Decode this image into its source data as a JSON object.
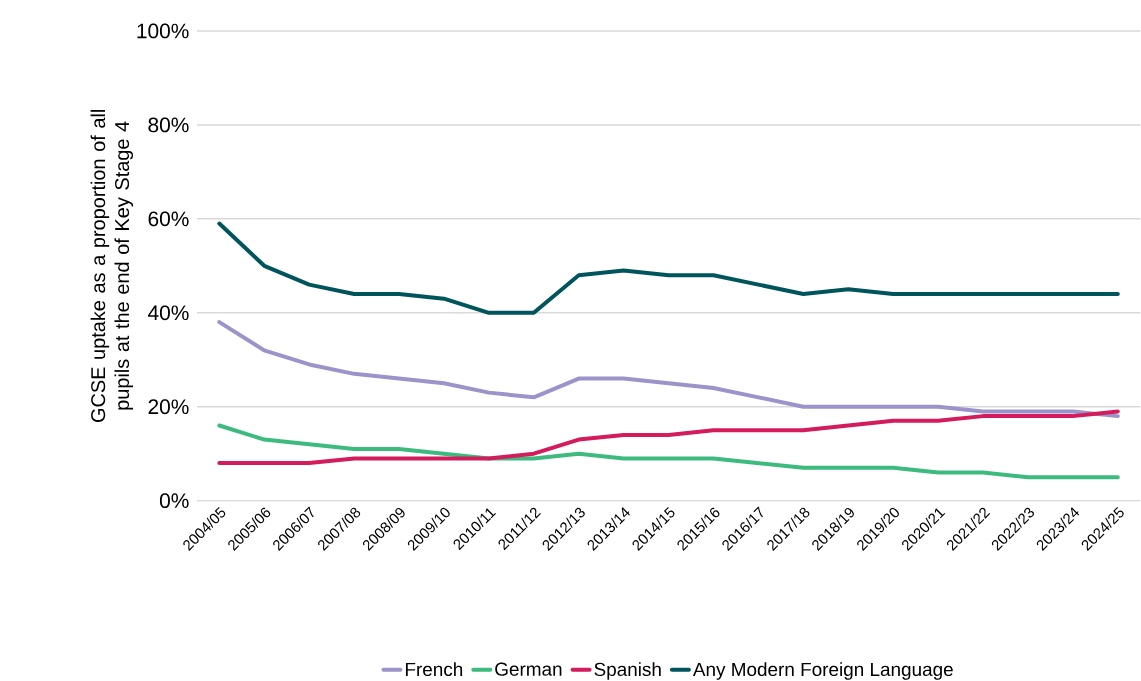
{
  "chart_data": {
    "type": "line",
    "ylabel": "GCSE uptake as a proportion of all pupils at the end of Key Stage 4",
    "categories": [
      "2004/05",
      "2005/06",
      "2006/07",
      "2007/08",
      "2008/09",
      "2009/10",
      "2010/11",
      "2011/12",
      "2012/13",
      "2013/14",
      "2014/15",
      "2015/16",
      "2016/17",
      "2017/18",
      "2018/19",
      "2019/20",
      "2020/21",
      "2021/22",
      "2022/23",
      "2023/24",
      "2024/25"
    ],
    "series": [
      {
        "name": "French",
        "color": "#9b93c9",
        "values": [
          38,
          32,
          29,
          27,
          26,
          25,
          23,
          22,
          26,
          26,
          25,
          24,
          22,
          20,
          20,
          20,
          20,
          19,
          19,
          19,
          18
        ]
      },
      {
        "name": "German",
        "color": "#3dbb7f",
        "values": [
          16,
          13,
          12,
          11,
          11,
          10,
          9,
          9,
          10,
          9,
          9,
          9,
          8,
          7,
          7,
          7,
          6,
          6,
          5,
          5,
          5
        ]
      },
      {
        "name": "Spanish",
        "color": "#d41b5c",
        "values": [
          8,
          8,
          8,
          9,
          9,
          9,
          9,
          10,
          13,
          14,
          14,
          15,
          15,
          15,
          16,
          17,
          17,
          18,
          18,
          18,
          19
        ]
      },
      {
        "name": "Any Modern Foreign Language",
        "color": "#00545c",
        "values": [
          59,
          50,
          46,
          44,
          44,
          43,
          40,
          40,
          48,
          49,
          48,
          48,
          46,
          44,
          45,
          44,
          44,
          44,
          44,
          44,
          44
        ]
      }
    ],
    "ylim": [
      0,
      100
    ],
    "yticks": [
      {
        "value": 0,
        "label": "0%"
      },
      {
        "value": 20,
        "label": "20%"
      },
      {
        "value": 40,
        "label": "40%"
      },
      {
        "value": 60,
        "label": "60%"
      },
      {
        "value": 80,
        "label": "80%"
      },
      {
        "value": 100,
        "label": "100%"
      }
    ],
    "grid": "y",
    "legend": "bottom",
    "marker": "none",
    "line_style": "solid"
  }
}
